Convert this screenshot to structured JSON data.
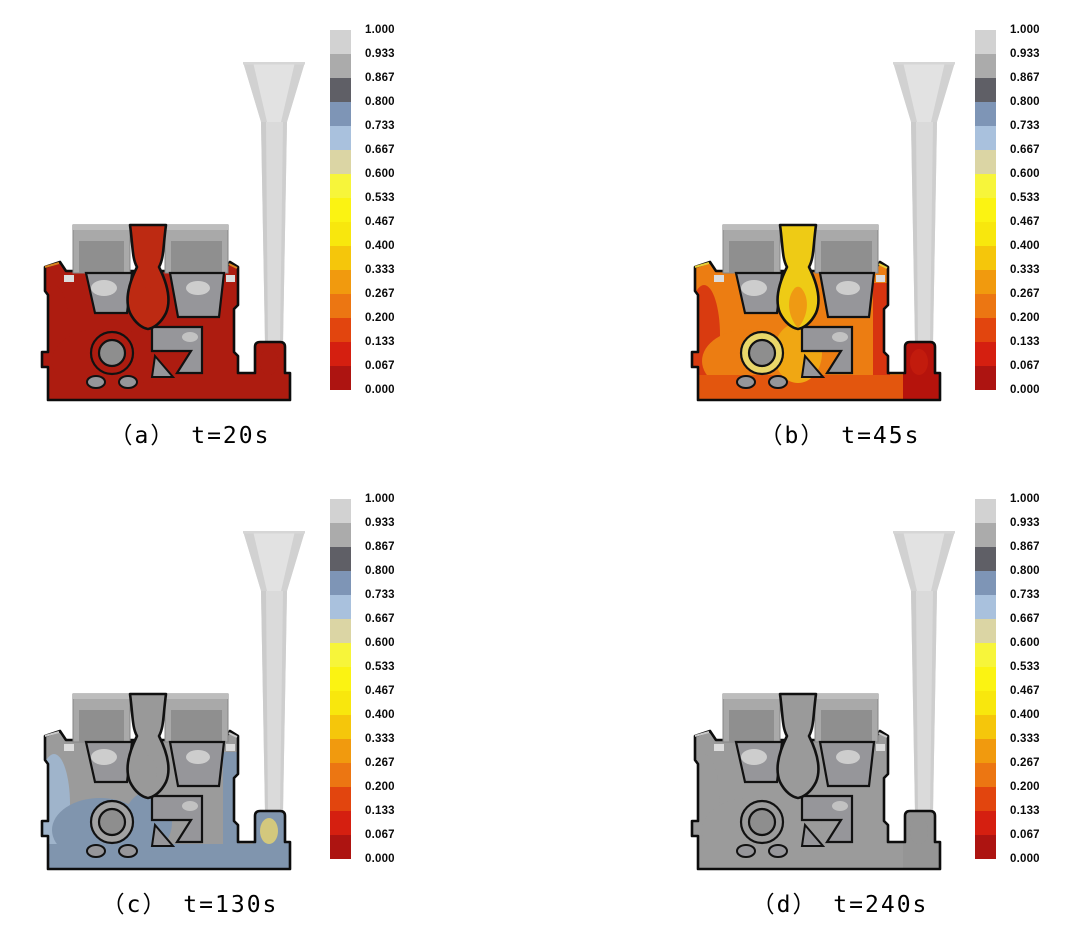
{
  "figure": {
    "background": "#ffffff",
    "panels": [
      {
        "id": "a",
        "caption": "（a） t=20s",
        "time_label": "t=20s",
        "colors": {
          "field": "#ad1c10",
          "channel": "#bd2a12",
          "channel2": "#bd2a12",
          "lake": "#ad1c10",
          "band": "#ad1c10",
          "blobL": "#ad1c10",
          "blobR": "#ad1c10",
          "glow": "#ad1c10",
          "ring": "#ad1c10",
          "riser": "#ad1c10",
          "riserSpot": "#ad1c10",
          "flangeAccent": "#d9831f"
        }
      },
      {
        "id": "b",
        "caption": "（b） t=45s",
        "time_label": "t=45s",
        "colors": {
          "field": "#ec7d12",
          "channel": "#eecb15",
          "channel2": "#ef9a13",
          "lake": "#ec7d12",
          "band": "#e3560e",
          "blobL": "#d93b10",
          "blobR": "#d73410",
          "glow": "#f0a713",
          "ring": "#e9d76a",
          "riser": "#b5130c",
          "riserSpot": "#c21b0d",
          "flangeAccent": "#e6cf3a"
        }
      },
      {
        "id": "c",
        "caption": "（c） t=130s",
        "time_label": "t=130s",
        "colors": {
          "field": "#9b9b9b",
          "channel": "#999999",
          "channel2": "#999999",
          "lake": "#8095ae",
          "band": "#8095ae",
          "blobL": "#9fb4cb",
          "blobR": "#8095ae",
          "glow": "#8095ae",
          "ring": "#a2a2a2",
          "riser": "#8095ae",
          "riserSpot": "#d3c87d",
          "flangeAccent": "#c9c9c9"
        }
      },
      {
        "id": "d",
        "caption": "（d） t=240s",
        "time_label": "t=240s",
        "colors": {
          "field": "#9b9b9b",
          "channel": "#9a9a9a",
          "channel2": "#9a9a9a",
          "lake": "#9b9b9b",
          "band": "#9b9b9b",
          "blobL": "#9b9b9b",
          "blobR": "#9b9b9b",
          "glow": "#9b9b9b",
          "ring": "#9b9b9b",
          "riser": "#959595",
          "riserSpot": "#959595",
          "flangeAccent": "#c9c9c9"
        }
      }
    ],
    "colorbar": {
      "labels": [
        "1.000",
        "0.933",
        "0.867",
        "0.800",
        "0.733",
        "0.667",
        "0.600",
        "0.533",
        "0.467",
        "0.400",
        "0.333",
        "0.267",
        "0.200",
        "0.133",
        "0.067",
        "0.000"
      ],
      "segment_colors": [
        "#d2d2d2",
        "#ababab",
        "#5f5f66",
        "#7e95b6",
        "#a9c1dd",
        "#dbd5a4",
        "#f7f53a",
        "#fbf312",
        "#f8e70d",
        "#f5c60b",
        "#f19a0e",
        "#ec7612",
        "#e2450e",
        "#d51f10",
        "#ad1411"
      ]
    }
  },
  "chart_data": {
    "type": "heatmap",
    "title": "",
    "description": "2x2 sequence of casting-solidification simulation contour plots. Each panel shows the same casting cross-section (engine-block-like mould cavity with top cores, bore core, side riser and pouring funnel/sprue at right) coloured by a normalized field (0.000-1.000) at increasing times.",
    "colorbar": {
      "min": 0.0,
      "max": 1.0,
      "tick_step": 0.067,
      "orientation": "vertical",
      "position": "right of each subplot",
      "tick_labels": [
        "1.000",
        "0.933",
        "0.867",
        "0.800",
        "0.733",
        "0.667",
        "0.600",
        "0.533",
        "0.467",
        "0.400",
        "0.333",
        "0.267",
        "0.200",
        "0.133",
        "0.067",
        "0.000"
      ],
      "segment_colors_top_to_bottom": [
        "#d2d2d2",
        "#ababab",
        "#5f5f66",
        "#7e95b6",
        "#a9c1dd",
        "#dbd5a4",
        "#f7f53a",
        "#fbf312",
        "#f8e70d",
        "#f5c60b",
        "#f19a0e",
        "#ec7612",
        "#e2450e",
        "#d51f10",
        "#ad1411"
      ]
    },
    "subplots": [
      {
        "label": "（a）",
        "time": "t=20s",
        "time_s": 20,
        "field_summary": "mould cavity almost entirely at 0.000-0.067 (dark red): metal fully liquid just after pouring"
      },
      {
        "label": "（b）",
        "time": "t=45s",
        "time_s": 45,
        "field_summary": "central sprue/feeder channel about 0.40-0.53 (yellow), main body about 0.20-0.33 (orange), outer edges, bottom runner and side riser about 0.00-0.13 (red)"
      },
      {
        "label": "（c）",
        "time": "t=130s",
        "time_s": 130,
        "field_summary": "upper body about 0.867-0.933 (grey), lower half about 0.667-0.800 (blue), small pocket in side riser about 0.600 (khaki)"
      },
      {
        "label": "（d）",
        "time": "t=240s",
        "time_s": 240,
        "field_summary": "entire casting about 0.867-0.933 (grey): solidification essentially complete"
      }
    ]
  }
}
